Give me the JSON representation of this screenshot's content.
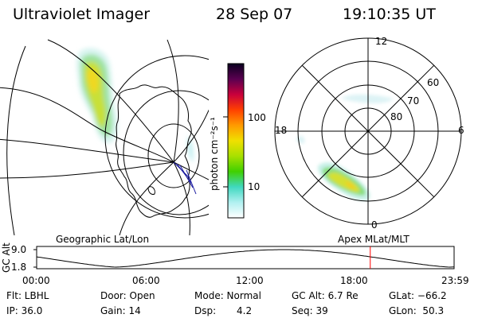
{
  "header": {
    "instrument": "Ultraviolet Imager",
    "date": "28 Sep 07",
    "time": "19:10:35 UT"
  },
  "colorbar": {
    "label": "photon cm⁻²s⁻¹",
    "ticks": [
      "100",
      "10"
    ],
    "stops": [
      "#0a0020",
      "#5a0050",
      "#c8003c",
      "#ff4000",
      "#ff9a00",
      "#f0e000",
      "#a8e000",
      "#40d000",
      "#40d8c0",
      "#b0f0f0",
      "#ffffff"
    ]
  },
  "geo_map": {
    "caption": "Geographic Lat/Lon"
  },
  "polar_plot": {
    "caption": "Apex MLat/MLT",
    "mlt_labels": {
      "top": "12",
      "left": "18",
      "right": "6",
      "bottom": "0"
    },
    "lat_labels": [
      "60",
      "70",
      "80"
    ]
  },
  "orbit_plot": {
    "y_axis_label": "GC Alt",
    "y_ticks": [
      "9.0",
      "1.8"
    ],
    "x_ticks": [
      "00:00",
      "06:00",
      "12:00",
      "18:00",
      "23:59"
    ],
    "marker_time_hours": 19.18,
    "marker_color": "#ff0000"
  },
  "info": {
    "filter": "Flt: LBHL",
    "ip": "IP: 36.0",
    "door": "Door: Open",
    "gain": "Gain: 14",
    "mode": "Mode: Normal",
    "dsp_label": "Dsp:",
    "dsp_value": "4.2",
    "gc_alt": "GC Alt: 6.7 Re",
    "seq": "Seq: 39",
    "glat": "GLat: −66.2",
    "glon": "GLon:  50.3"
  }
}
